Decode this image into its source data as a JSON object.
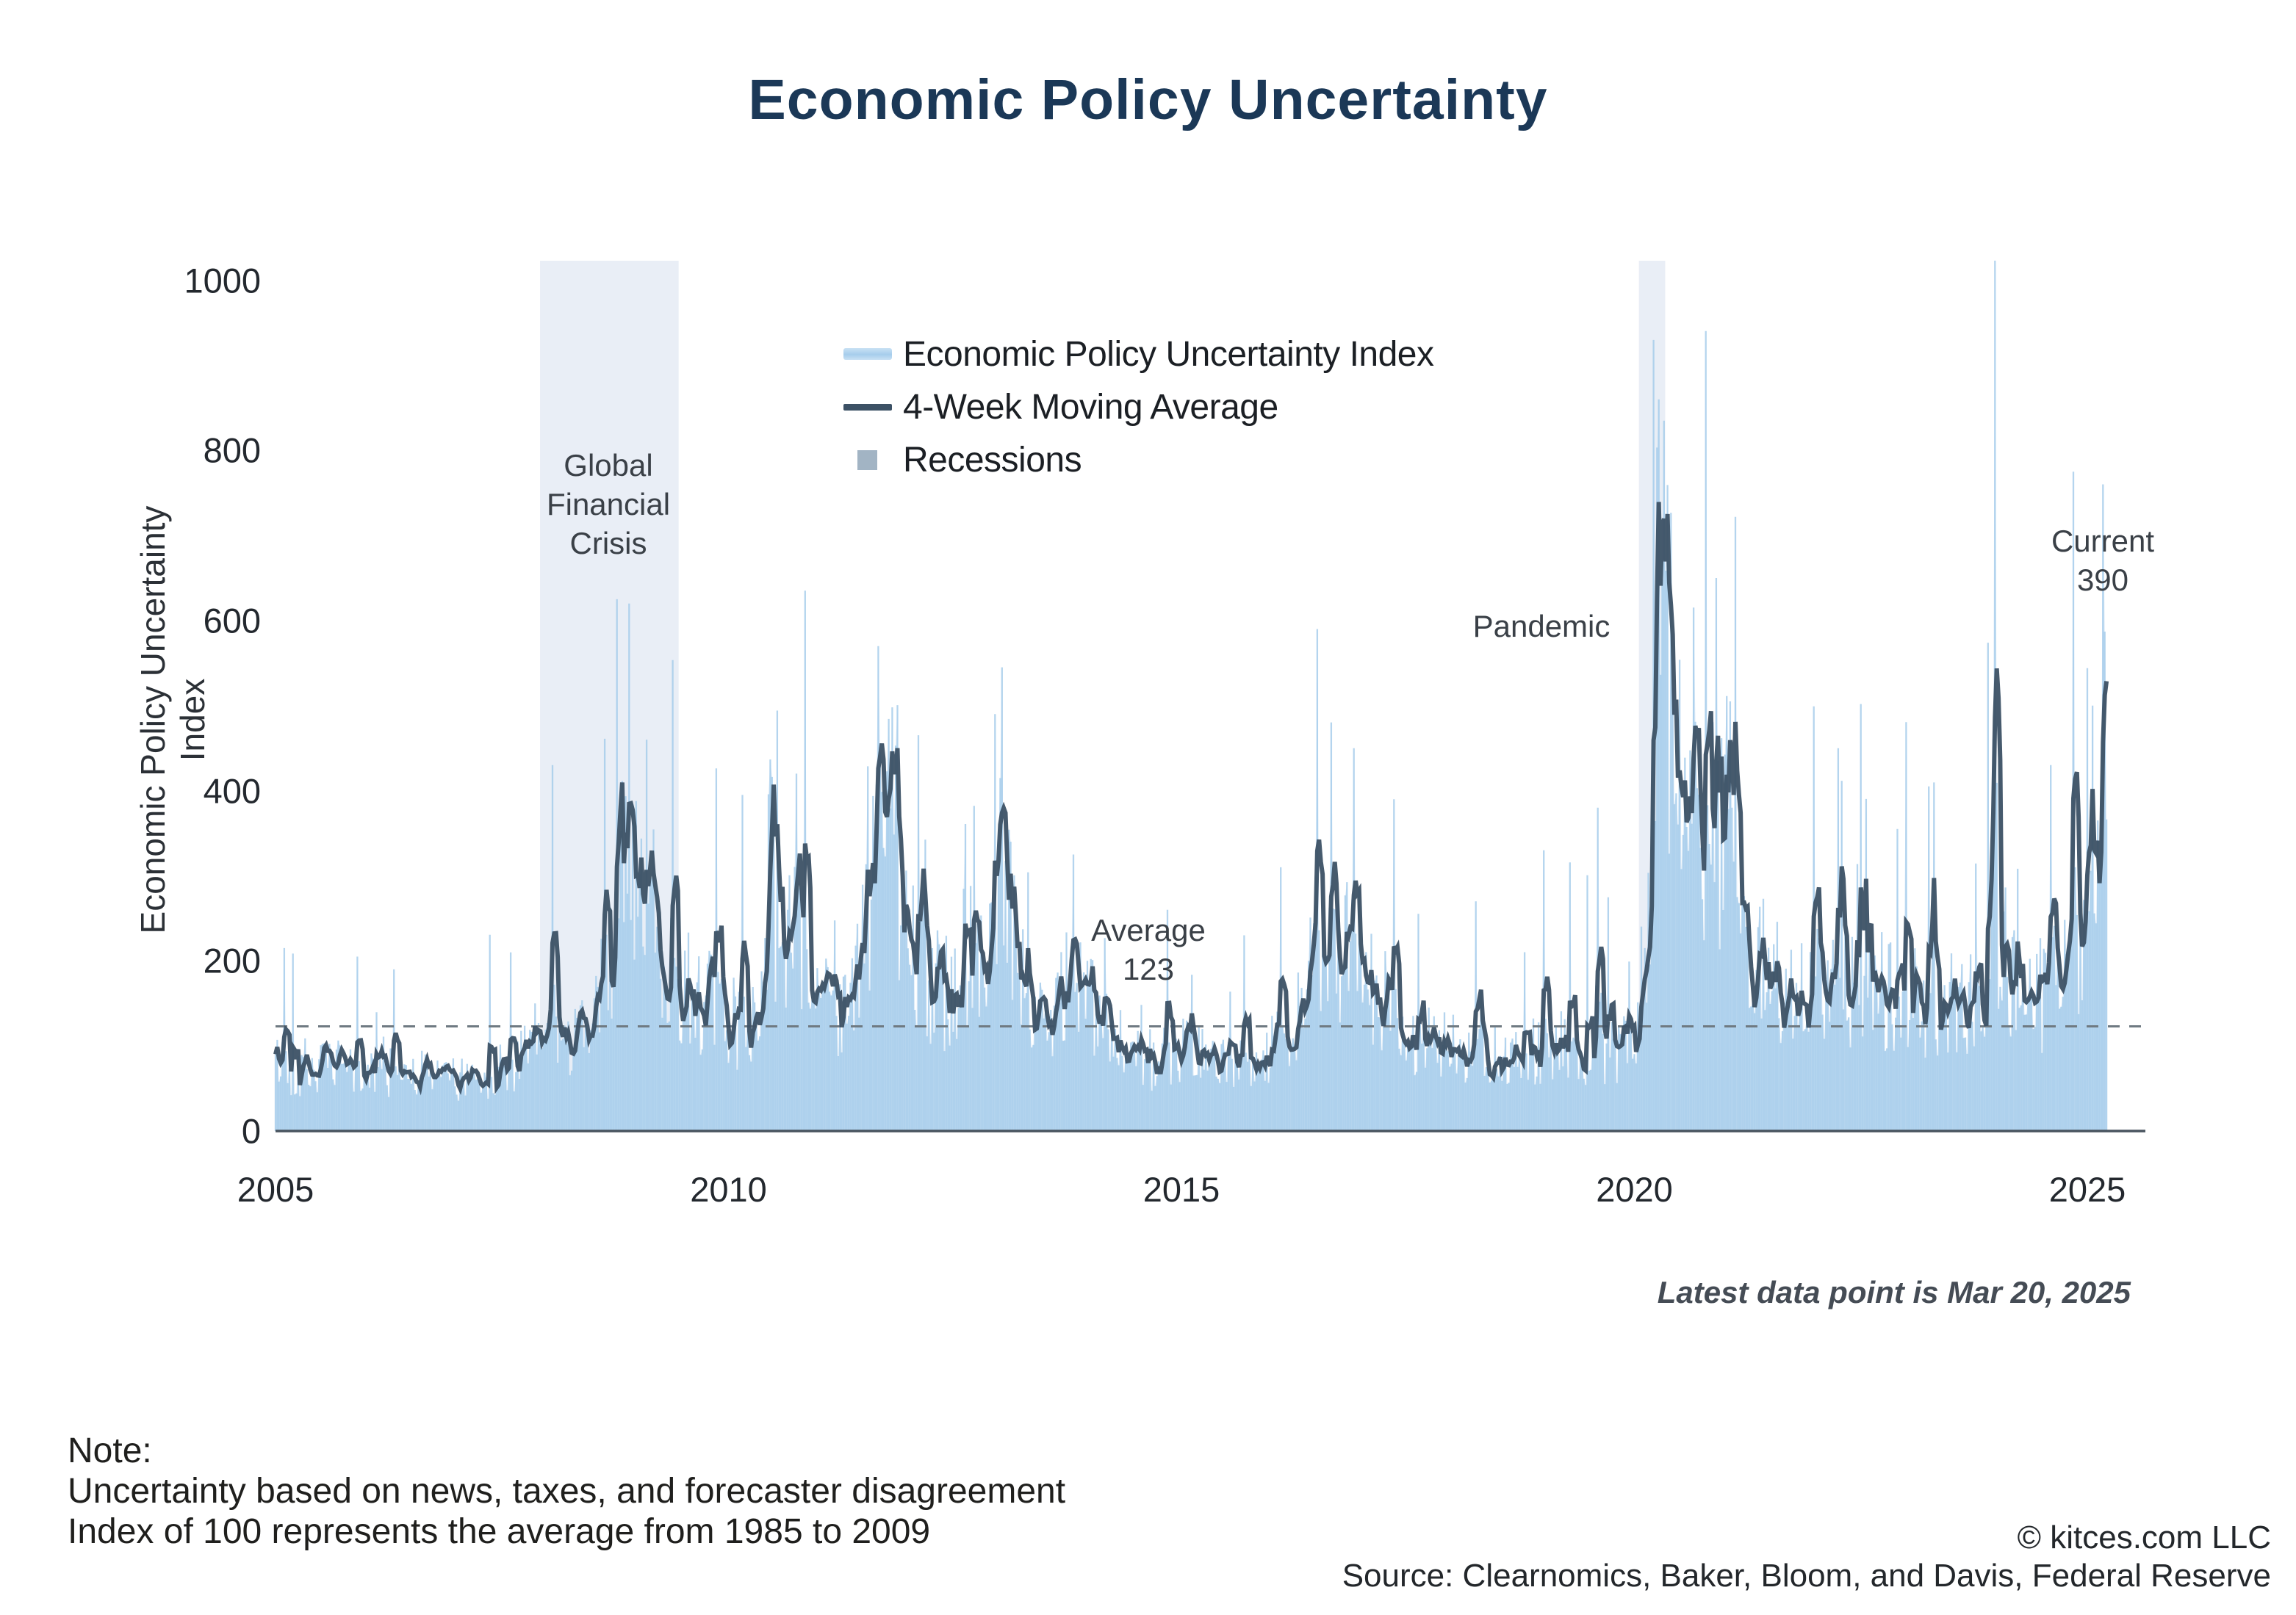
{
  "title": "Economic Policy Uncertainty",
  "legend": {
    "items": [
      {
        "label": "Economic Policy Uncertainty Index",
        "swatch": "area-swatch"
      },
      {
        "label": "4-Week Moving Average",
        "swatch": "line-swatch"
      },
      {
        "label": "Recessions",
        "swatch": "box-swatch"
      }
    ]
  },
  "annotations": {
    "gfc": "Global\nFinancial\nCrisis",
    "pandemic": "Pandemic",
    "average": "Average\n123",
    "current": "Current\n390",
    "latest_note": "Latest data point is Mar 20, 2025"
  },
  "footer": {
    "note": "Note:\nUncertainty based on news, taxes, and forecaster disagreement\nIndex of 100 represents the average from 1985 to 2009",
    "credit": "© kitces.com LLC\nSource: Clearnomics, Baker, Bloom, and Davis, Federal Reserve"
  },
  "colors": {
    "title_navy": "#1b3857",
    "index_bar_blue": "#a3cbea",
    "index_area_fill": "#d9e9f7",
    "moving_average": "#3c5165",
    "recession_band": "#e9eef6",
    "legend_recession_box": "#a2b4c4",
    "dashed_average": "#6f7a82",
    "axis_line": "#49545f",
    "tick_text": "#23282e"
  },
  "chart_data": {
    "type": "area+line",
    "title": "Economic Policy Uncertainty",
    "xlabel": "",
    "ylabel": "Economic Policy Uncertainty Index",
    "x_range": [
      2005,
      2025.22
    ],
    "ylim": [
      0,
      1020
    ],
    "draw_clip_max": 1023,
    "yticks": [
      0,
      200,
      400,
      600,
      800,
      1000
    ],
    "xticks": [
      2005,
      2010,
      2015,
      2020,
      2025
    ],
    "grid": false,
    "legend_position": "upper-center",
    "series": [
      {
        "name": "Economic Policy Uncertainty Index",
        "type": "area",
        "color": "#a3cbea"
      },
      {
        "name": "4-Week Moving Average",
        "type": "line",
        "color": "#3c5165"
      }
    ],
    "average_line": {
      "label": "Average",
      "value": 123
    },
    "current": {
      "label": "Current",
      "value": 390
    },
    "latest_note": "Latest data point is Mar 20, 2025",
    "recessions": [
      {
        "name": "Global Financial Crisis",
        "start": 2007.92,
        "end": 2009.45
      },
      {
        "name": "Pandemic",
        "start": 2020.05,
        "end": 2020.34
      }
    ],
    "ma_anchors": [
      [
        2005.0,
        85
      ],
      [
        2005.3,
        70
      ],
      [
        2005.6,
        78
      ],
      [
        2005.9,
        72
      ],
      [
        2006.2,
        68
      ],
      [
        2006.5,
        75
      ],
      [
        2006.8,
        65
      ],
      [
        2007.1,
        62
      ],
      [
        2007.4,
        70
      ],
      [
        2007.7,
        85
      ],
      [
        2007.95,
        120
      ],
      [
        2008.2,
        110
      ],
      [
        2008.5,
        120
      ],
      [
        2008.75,
        230
      ],
      [
        2008.85,
        375
      ],
      [
        2009.0,
        330
      ],
      [
        2009.2,
        245
      ],
      [
        2009.45,
        190
      ],
      [
        2009.7,
        160
      ],
      [
        2010.0,
        135
      ],
      [
        2010.2,
        120
      ],
      [
        2010.45,
        185
      ],
      [
        2010.7,
        230
      ],
      [
        2010.9,
        195
      ],
      [
        2011.1,
        150
      ],
      [
        2011.4,
        165
      ],
      [
        2011.62,
        300
      ],
      [
        2011.75,
        385
      ],
      [
        2011.9,
        290
      ],
      [
        2012.1,
        200
      ],
      [
        2012.35,
        165
      ],
      [
        2012.6,
        205
      ],
      [
        2012.85,
        230
      ],
      [
        2013.0,
        320
      ],
      [
        2013.15,
        235
      ],
      [
        2013.4,
        150
      ],
      [
        2013.6,
        120
      ],
      [
        2013.78,
        230
      ],
      [
        2013.9,
        180
      ],
      [
        2014.1,
        125
      ],
      [
        2014.4,
        95
      ],
      [
        2014.7,
        85
      ],
      [
        2015.0,
        95
      ],
      [
        2015.3,
        85
      ],
      [
        2015.6,
        78
      ],
      [
        2015.9,
        95
      ],
      [
        2016.2,
        115
      ],
      [
        2016.5,
        230
      ],
      [
        2016.62,
        185
      ],
      [
        2016.85,
        235
      ],
      [
        2017.05,
        175
      ],
      [
        2017.3,
        130
      ],
      [
        2017.6,
        110
      ],
      [
        2017.9,
        100
      ],
      [
        2018.2,
        95
      ],
      [
        2018.5,
        88
      ],
      [
        2018.8,
        95
      ],
      [
        2019.1,
        105
      ],
      [
        2019.4,
        95
      ],
      [
        2019.7,
        92
      ],
      [
        2020.0,
        110
      ],
      [
        2020.18,
        300
      ],
      [
        2020.32,
        640
      ],
      [
        2020.45,
        480
      ],
      [
        2020.6,
        380
      ],
      [
        2020.8,
        340
      ],
      [
        2020.95,
        380
      ],
      [
        2021.1,
        280
      ],
      [
        2021.3,
        220
      ],
      [
        2021.6,
        175
      ],
      [
        2021.9,
        165
      ],
      [
        2022.2,
        180
      ],
      [
        2022.5,
        165
      ],
      [
        2022.8,
        170
      ],
      [
        2023.1,
        160
      ],
      [
        2023.4,
        150
      ],
      [
        2023.7,
        155
      ],
      [
        2023.95,
        210
      ],
      [
        2024.05,
        260
      ],
      [
        2024.2,
        170
      ],
      [
        2024.5,
        165
      ],
      [
        2024.75,
        185
      ],
      [
        2024.95,
        240
      ],
      [
        2025.05,
        220
      ],
      [
        2025.15,
        330
      ],
      [
        2025.21,
        650
      ]
    ],
    "spikes": [
      [
        2005.1,
        215
      ],
      [
        2005.9,
        205
      ],
      [
        2006.3,
        190
      ],
      [
        2007.6,
        210
      ],
      [
        2008.05,
        430
      ],
      [
        2008.77,
        625
      ],
      [
        2008.9,
        620
      ],
      [
        2009.1,
        460
      ],
      [
        2010.15,
        395
      ],
      [
        2010.5,
        380
      ],
      [
        2010.75,
        420
      ],
      [
        2011.65,
        570
      ],
      [
        2011.8,
        498
      ],
      [
        2012.95,
        490
      ],
      [
        2013.02,
        545
      ],
      [
        2013.8,
        325
      ],
      [
        2014.85,
        260
      ],
      [
        2015.7,
        230
      ],
      [
        2016.1,
        310
      ],
      [
        2016.5,
        590
      ],
      [
        2016.9,
        450
      ],
      [
        2017.35,
        390
      ],
      [
        2018.25,
        270
      ],
      [
        2019.0,
        330
      ],
      [
        2019.6,
        380
      ],
      [
        2020.27,
        860
      ],
      [
        2020.32,
        835
      ],
      [
        2020.9,
        650
      ],
      [
        2021.05,
        505
      ],
      [
        2022.25,
        450
      ],
      [
        2023.25,
        405
      ],
      [
        2023.98,
        1023
      ],
      [
        2024.6,
        430
      ],
      [
        2024.85,
        775
      ],
      [
        2025.05,
        500
      ],
      [
        2025.17,
        760
      ]
    ],
    "noise_seed": 42,
    "weeks_per_year": 52
  }
}
